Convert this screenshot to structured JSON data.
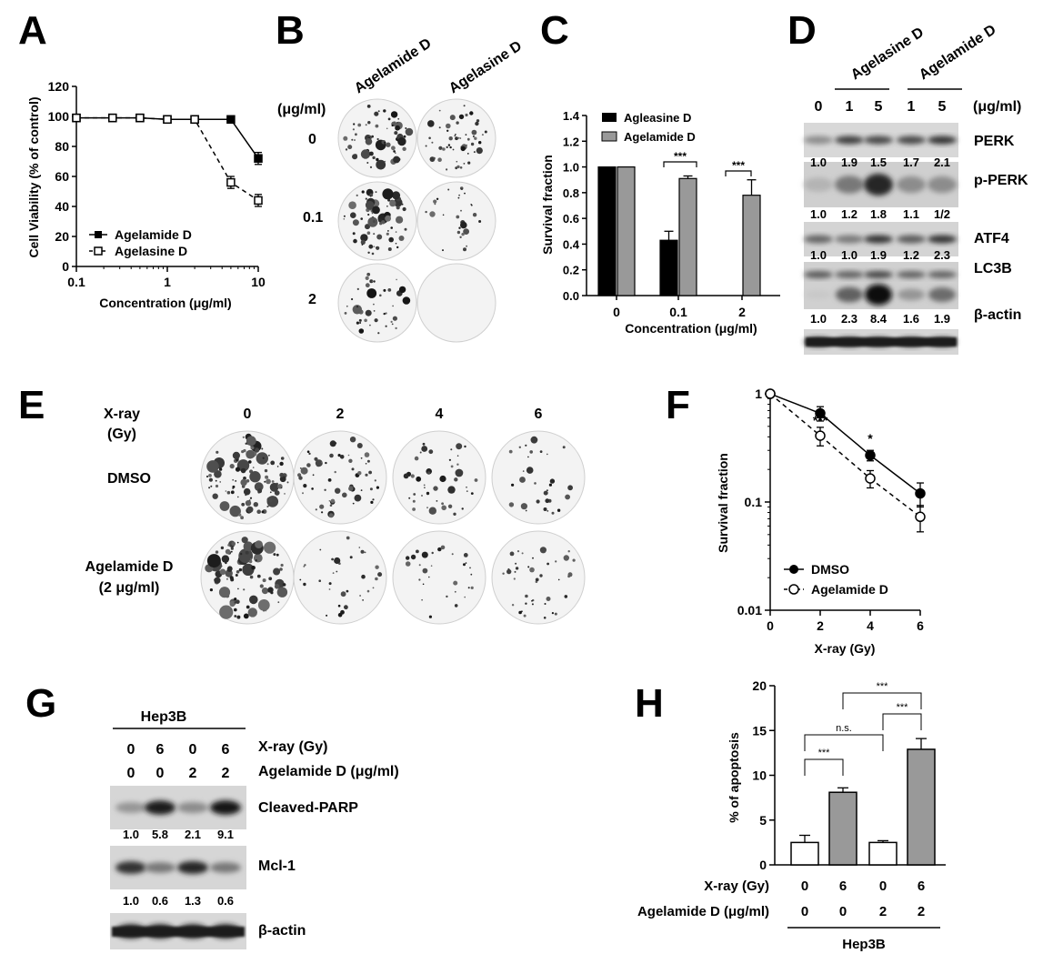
{
  "panels": {
    "A": "A",
    "B": "B",
    "C": "C",
    "D": "D",
    "E": "E",
    "F": "F",
    "G": "G",
    "H": "H"
  },
  "panelA": {
    "xlabel": "Concentration (μg/ml)",
    "ylabel": "Cell Viability (% of control)",
    "xticks": [
      "0.1",
      "1",
      "10"
    ],
    "yticks": [
      "0",
      "20",
      "40",
      "60",
      "80",
      "100",
      "120"
    ],
    "legend": [
      "Agelamide D",
      "Agelasine D"
    ]
  },
  "panelB": {
    "cols": [
      "Agelamide D",
      "Agelasine D"
    ],
    "unit": "(μg/ml)",
    "rows": [
      "0",
      "0.1",
      "2"
    ]
  },
  "panelC": {
    "xlabel": "Concentration (μg/ml)",
    "ylabel": "Survival fraction",
    "xticks": [
      "0",
      "0.1",
      "2"
    ],
    "yticks": [
      "0.0",
      "0.2",
      "0.4",
      "0.6",
      "0.8",
      "1.0",
      "1.2",
      "1.4"
    ],
    "legend": [
      "Agleasine D",
      "Agelamide D"
    ],
    "sig": [
      "***",
      "***"
    ]
  },
  "panelD": {
    "groups": [
      "Agelasine D",
      "Agelamide D"
    ],
    "lanes": [
      "0",
      "1",
      "5",
      "1",
      "5"
    ],
    "unit": "(μg/ml)",
    "labels": [
      "PERK",
      "p-PERK",
      "ATF4",
      "LC3B",
      "β-actin"
    ],
    "quants": [
      [
        "1.0",
        "1.9",
        "1.5",
        "1.7",
        "2.1"
      ],
      [
        "1.0",
        "1.2",
        "1.8",
        "1.1",
        "1/2"
      ],
      [
        "1.0",
        "1.0",
        "1.9",
        "1.2",
        "2.3"
      ],
      [
        "1.0",
        "2.3",
        "8.4",
        "1.6",
        "1.9"
      ]
    ]
  },
  "panelE": {
    "xray": "X-ray",
    "gy": "(Gy)",
    "doses": [
      "0",
      "2",
      "4",
      "6"
    ],
    "row1": "DMSO",
    "row2a": "Agelamide D",
    "row2b": "(2 μg/ml)"
  },
  "panelF": {
    "xlabel": "X-ray (Gy)",
    "ylabel": "Survival fraction",
    "xticks": [
      "0",
      "2",
      "4",
      "6"
    ],
    "yticks": [
      "1",
      "0.1",
      "0.01"
    ],
    "legend": [
      "DMSO",
      "Agelamide D"
    ],
    "sig": [
      "***",
      "*"
    ]
  },
  "panelG": {
    "cell": "Hep3B",
    "xray_vals": [
      "0",
      "6",
      "0",
      "6"
    ],
    "drug_vals": [
      "0",
      "0",
      "2",
      "2"
    ],
    "xray_label": "X-ray (Gy)",
    "drug_label": "Agelamide D (μg/ml)",
    "labels": [
      "Cleaved-PARP",
      "Mcl-1",
      "β-actin"
    ],
    "quants": [
      [
        "1.0",
        "5.8",
        "2.1",
        "9.1"
      ],
      [
        "1.0",
        "0.6",
        "1.3",
        "0.6"
      ]
    ]
  },
  "panelH": {
    "ylabel": "% of apoptosis",
    "yticks": [
      "0",
      "5",
      "10",
      "15",
      "20"
    ],
    "xray_label": "X-ray (Gy)",
    "drug_label": "Agelamide D (μg/ml)",
    "xray_vals": [
      "0",
      "6",
      "0",
      "6"
    ],
    "drug_vals": [
      "0",
      "0",
      "2",
      "2"
    ],
    "cell": "Hep3B",
    "sig": [
      "***",
      "n.s.",
      "***",
      "***"
    ]
  },
  "chart_data": [
    {
      "panel": "A",
      "type": "line",
      "xlabel": "Concentration (μg/ml)",
      "ylabel": "Cell Viability (% of control)",
      "xscale": "log",
      "xlim": [
        0.1,
        10
      ],
      "ylim": [
        0,
        120
      ],
      "series": [
        {
          "name": "Agelamide D",
          "x": [
            0.1,
            0.25,
            0.5,
            1,
            2,
            5,
            10
          ],
          "y": [
            99,
            99,
            99,
            98,
            98,
            98,
            72
          ],
          "err": [
            0,
            0,
            0,
            0,
            0,
            0,
            4
          ]
        },
        {
          "name": "Agelasine D",
          "x": [
            0.1,
            0.25,
            0.5,
            1,
            2,
            5,
            10
          ],
          "y": [
            99,
            99,
            99,
            98,
            98,
            56,
            44
          ],
          "err": [
            0,
            0,
            0,
            0,
            2,
            4,
            4
          ]
        }
      ]
    },
    {
      "panel": "C",
      "type": "bar",
      "xlabel": "Concentration (μg/ml)",
      "ylabel": "Survival fraction",
      "categories": [
        "0",
        "0.1",
        "2"
      ],
      "ylim": [
        0,
        1.4
      ],
      "series": [
        {
          "name": "Agleasine D",
          "values": [
            1.0,
            0.43,
            0
          ],
          "err": [
            0,
            0.07,
            0
          ]
        },
        {
          "name": "Agelamide D",
          "values": [
            1.0,
            0.91,
            0.78
          ],
          "err": [
            0,
            0.02,
            0.12
          ]
        }
      ]
    },
    {
      "panel": "F",
      "type": "line",
      "xlabel": "X-ray (Gy)",
      "ylabel": "Survival fraction",
      "yscale": "log",
      "xlim": [
        0,
        6
      ],
      "ylim": [
        0.01,
        1
      ],
      "series": [
        {
          "name": "DMSO",
          "x": [
            0,
            2,
            4,
            6
          ],
          "y": [
            1.0,
            0.66,
            0.27,
            0.12
          ],
          "err": [
            0.06,
            0.1,
            0.03,
            0.03
          ]
        },
        {
          "name": "Agelamide D",
          "x": [
            0,
            2,
            4,
            6
          ],
          "y": [
            1.0,
            0.41,
            0.165,
            0.073
          ],
          "err": [
            0.06,
            0.08,
            0.03,
            0.02
          ]
        }
      ]
    },
    {
      "panel": "H",
      "type": "bar",
      "ylabel": "% of apoptosis",
      "categories": [
        "0/0",
        "6/0",
        "0/2",
        "6/2"
      ],
      "ylim": [
        0,
        20
      ],
      "values": [
        2.5,
        8.1,
        2.5,
        12.9
      ],
      "err": [
        0.8,
        0.5,
        0.2,
        1.2
      ]
    }
  ]
}
